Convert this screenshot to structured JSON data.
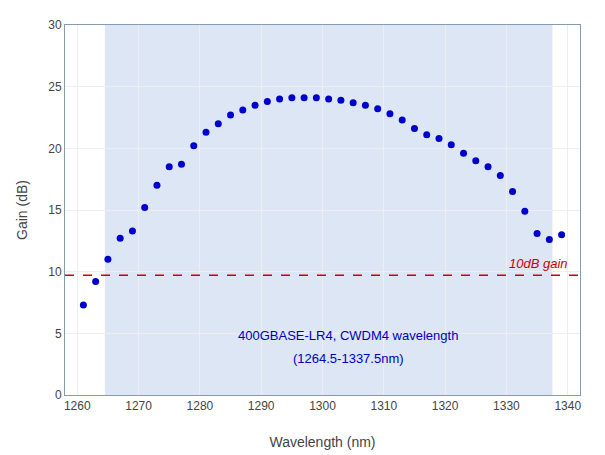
{
  "chart_data": {
    "type": "scatter",
    "x": [
      1261,
      1263,
      1265,
      1267,
      1269,
      1271,
      1273,
      1275,
      1277,
      1279,
      1281,
      1283,
      1285,
      1287,
      1289,
      1291,
      1293,
      1295,
      1297,
      1299,
      1301,
      1303,
      1305,
      1307,
      1309,
      1311,
      1313,
      1315,
      1317,
      1319,
      1321,
      1323,
      1325,
      1327,
      1329,
      1331,
      1333,
      1335,
      1337,
      1339
    ],
    "values": [
      7.3,
      9.2,
      11.0,
      12.7,
      13.3,
      15.2,
      17.0,
      18.5,
      18.7,
      20.2,
      21.3,
      22.0,
      22.7,
      23.1,
      23.5,
      23.8,
      24.0,
      24.1,
      24.1,
      24.1,
      24.0,
      23.9,
      23.7,
      23.5,
      23.2,
      22.8,
      22.3,
      21.6,
      21.1,
      20.8,
      20.3,
      19.6,
      19.0,
      18.5,
      17.8,
      16.5,
      14.9,
      13.1,
      12.6,
      13.0
    ],
    "color": "#0000cc",
    "marker": "circle",
    "xlim": [
      1258,
      1342
    ],
    "ylim": [
      0,
      30
    ],
    "xticks": [
      1260,
      1270,
      1280,
      1290,
      1300,
      1310,
      1320,
      1330,
      1340
    ],
    "yticks": [
      0,
      5,
      10,
      15,
      20,
      25,
      30
    ],
    "xlabel": "Wavelength (nm)",
    "ylabel": "Gain (dB)",
    "grid": true,
    "shaded_region": {
      "x": [
        1264.5,
        1337.5
      ],
      "color": "#dce6f4"
    },
    "reference_line": {
      "y": 9.7,
      "label": "10dB gain",
      "color": "#cc0000",
      "line_style": "dashed"
    },
    "annotations": {
      "lines": [
        "400GBASE-LR4, CWDM4 wavelength",
        "(1264.5-1337.5nm)"
      ],
      "color": "#0000bb"
    }
  }
}
